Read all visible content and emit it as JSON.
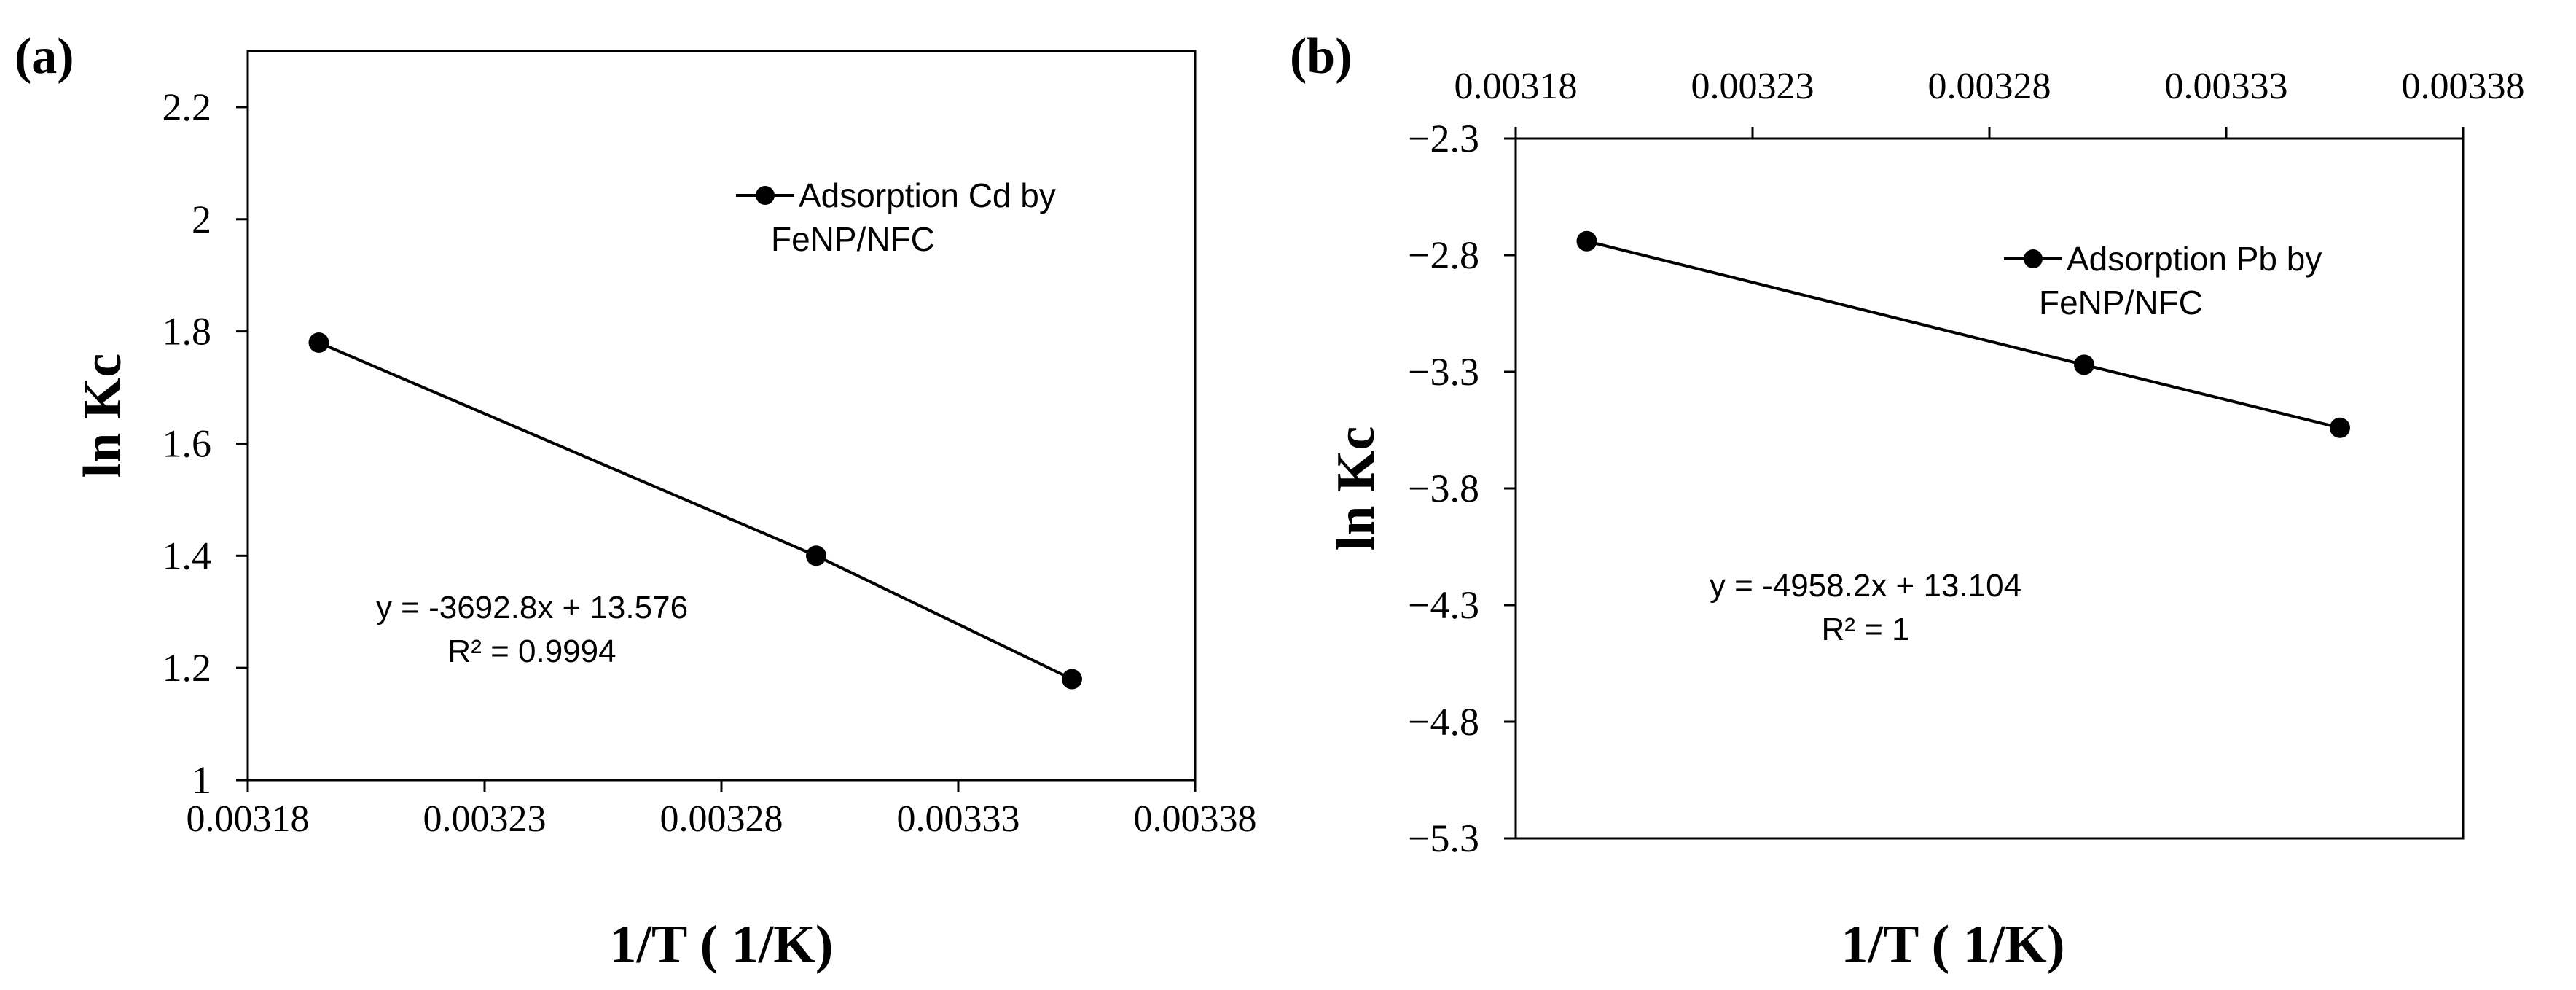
{
  "chart_data": [
    {
      "type": "line",
      "panel_label": "(a)",
      "xlabel": "1/T ( 1/K)",
      "ylabel": "ln Kc",
      "xlim": [
        0.00318,
        0.00338
      ],
      "ylim": [
        1,
        2.3
      ],
      "x_ticks": [
        0.00318,
        0.00323,
        0.00328,
        0.00333,
        0.00338
      ],
      "x_tick_labels": [
        "0.00318",
        "0.00323",
        "0.00328",
        "0.00333",
        "0.00338"
      ],
      "y_ticks": [
        1,
        1.2,
        1.4,
        1.6,
        1.8,
        2,
        2.2
      ],
      "y_tick_labels": [
        "1",
        "1.2",
        "1.4",
        "1.6",
        "1.8",
        "2",
        "2.2"
      ],
      "x_axis_position": "bottom",
      "legend_position": "top-right",
      "series": [
        {
          "name": "Adsorption Cd by FeNP/NFC",
          "legend_lines": [
            "Adsorption Cd by",
            "FeNP/NFC"
          ],
          "x": [
            0.003195,
            0.0033,
            0.003354
          ],
          "y": [
            1.78,
            1.4,
            1.18
          ]
        }
      ],
      "annotations": [
        "y = -3692.8x + 13.576",
        "R² = 0.9994"
      ],
      "grid": false
    },
    {
      "type": "line",
      "panel_label": "(b)",
      "xlabel": "1/T ( 1/K)",
      "ylabel": "ln Kc",
      "xlim": [
        0.00318,
        0.00338
      ],
      "ylim": [
        -5.3,
        -2.3
      ],
      "x_ticks": [
        0.00318,
        0.00323,
        0.00328,
        0.00333,
        0.00338
      ],
      "x_tick_labels": [
        "0.00318",
        "0.00323",
        "0.00328",
        "0.00333",
        "0.00338"
      ],
      "y_ticks": [
        -5.3,
        -4.8,
        -4.3,
        -3.8,
        -3.3,
        -2.8,
        -2.3
      ],
      "y_tick_labels": [
        "−5.3",
        "−4.8",
        "−4.3",
        "−3.8",
        "−3.3",
        "−2.8",
        "−2.3"
      ],
      "x_axis_position": "top",
      "legend_position": "top-right",
      "series": [
        {
          "name": "Adsorption Pb by FeNP/NFC",
          "legend_lines": [
            "Adsorption Pb by",
            "FeNP/NFC"
          ],
          "x": [
            0.003195,
            0.0033,
            0.003354
          ],
          "y": [
            -2.74,
            -3.27,
            -3.54
          ]
        }
      ],
      "annotations": [
        "y = -4958.2x + 13.104",
        "R² = 1"
      ],
      "grid": false
    }
  ]
}
